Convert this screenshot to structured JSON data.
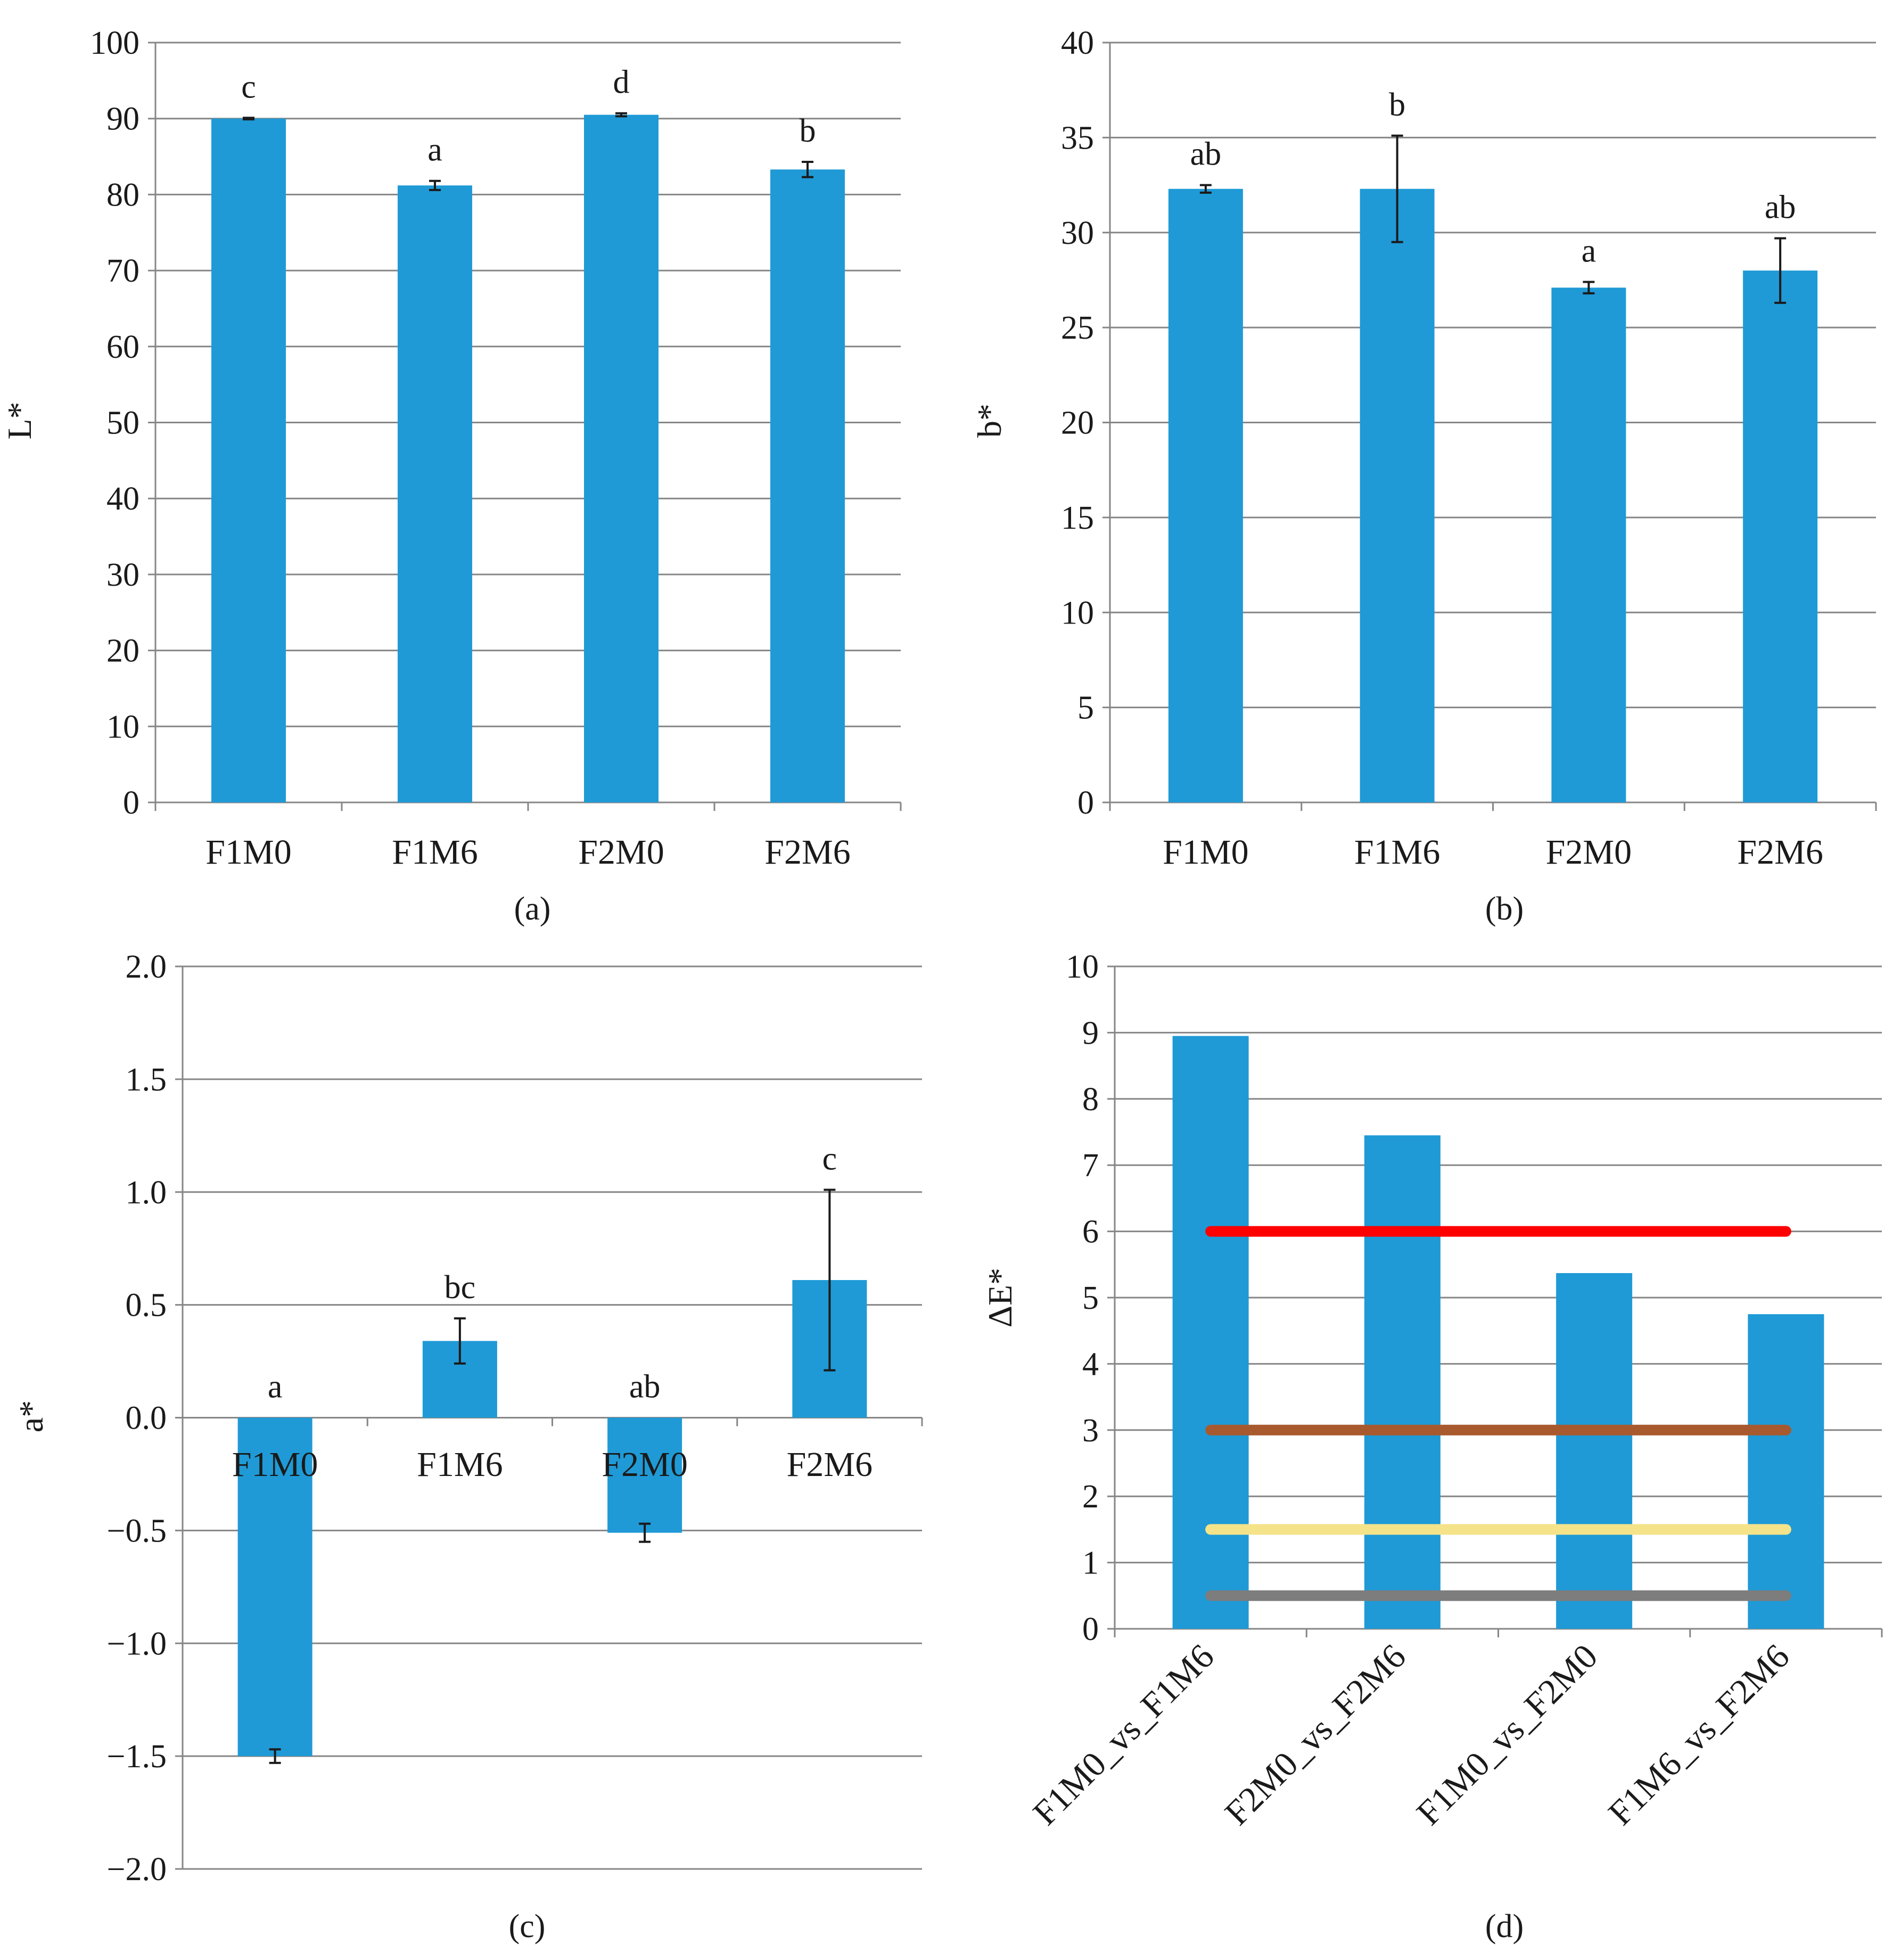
{
  "colors": {
    "bar": "#1f9ad6",
    "line_red": "#ff0000",
    "line_brown": "#a85a2e",
    "line_yellow": "#f5e38a",
    "line_gray": "#7d7d7d"
  },
  "chart_data": [
    {
      "id": "a",
      "type": "bar",
      "panel_label": "(a)",
      "ylabel": "L*",
      "ylim": [
        0,
        100
      ],
      "yticks": [
        0,
        10,
        20,
        30,
        40,
        50,
        60,
        70,
        80,
        90,
        100
      ],
      "ytick_labels": [
        "0",
        "10",
        "20",
        "30",
        "40",
        "50",
        "60",
        "70",
        "80",
        "90",
        "100"
      ],
      "categories": [
        "F1M0",
        "F1M6",
        "F2M0",
        "F2M6"
      ],
      "values": [
        90.0,
        81.2,
        90.5,
        83.3
      ],
      "errors": [
        0.1,
        0.6,
        0.2,
        1.0
      ],
      "letters": [
        "c",
        "a",
        "d",
        "b"
      ]
    },
    {
      "id": "b",
      "type": "bar",
      "panel_label": "(b)",
      "ylabel": "b*",
      "ylim": [
        0,
        40
      ],
      "yticks": [
        0,
        5,
        10,
        15,
        20,
        25,
        30,
        35,
        40
      ],
      "ytick_labels": [
        "0",
        "5",
        "10",
        "15",
        "20",
        "25",
        "30",
        "35",
        "40"
      ],
      "categories": [
        "F1M0",
        "F1M6",
        "F2M0",
        "F2M6"
      ],
      "values": [
        32.3,
        32.3,
        27.1,
        28.0
      ],
      "errors": [
        0.2,
        2.8,
        0.3,
        1.7
      ],
      "letters": [
        "ab",
        "b",
        "a",
        "ab"
      ]
    },
    {
      "id": "c",
      "type": "bar",
      "panel_label": "(c)",
      "ylabel": "a*",
      "ylim": [
        -2.0,
        2.0
      ],
      "yticks": [
        -2.0,
        -1.5,
        -1.0,
        -0.5,
        0.0,
        0.5,
        1.0,
        1.5,
        2.0
      ],
      "ytick_labels": [
        "−2.0",
        "−1.5",
        "−1.0",
        "−0.5",
        "0.0",
        "0.5",
        "1.0",
        "1.5",
        "2.0"
      ],
      "categories": [
        "F1M0",
        "F1M6",
        "F2M0",
        "F2M6"
      ],
      "values": [
        -1.5,
        0.34,
        -0.51,
        0.61
      ],
      "errors": [
        0.03,
        0.1,
        0.04,
        0.4
      ],
      "letters": [
        "a",
        "bc",
        "ab",
        "c"
      ]
    },
    {
      "id": "d",
      "type": "bar",
      "panel_label": "(d)",
      "ylabel": "ΔE*",
      "ylim": [
        0,
        10
      ],
      "yticks": [
        0,
        1,
        2,
        3,
        4,
        5,
        6,
        7,
        8,
        9,
        10
      ],
      "ytick_labels": [
        "0",
        "1",
        "2",
        "3",
        "4",
        "5",
        "6",
        "7",
        "8",
        "9",
        "10"
      ],
      "categories": [
        "F1M0_vs_F1M6",
        "F2M0_vs_F2M6",
        "F1M0_vs_F2M0",
        "F1M6_vs_F2M6"
      ],
      "values": [
        8.95,
        7.45,
        5.37,
        4.75
      ],
      "reference_lines": [
        {
          "value": 6.0,
          "color": "#ff0000"
        },
        {
          "value": 3.0,
          "color": "#a85a2e"
        },
        {
          "value": 1.5,
          "color": "#f5e38a"
        },
        {
          "value": 0.5,
          "color": "#7d7d7d"
        }
      ]
    }
  ]
}
